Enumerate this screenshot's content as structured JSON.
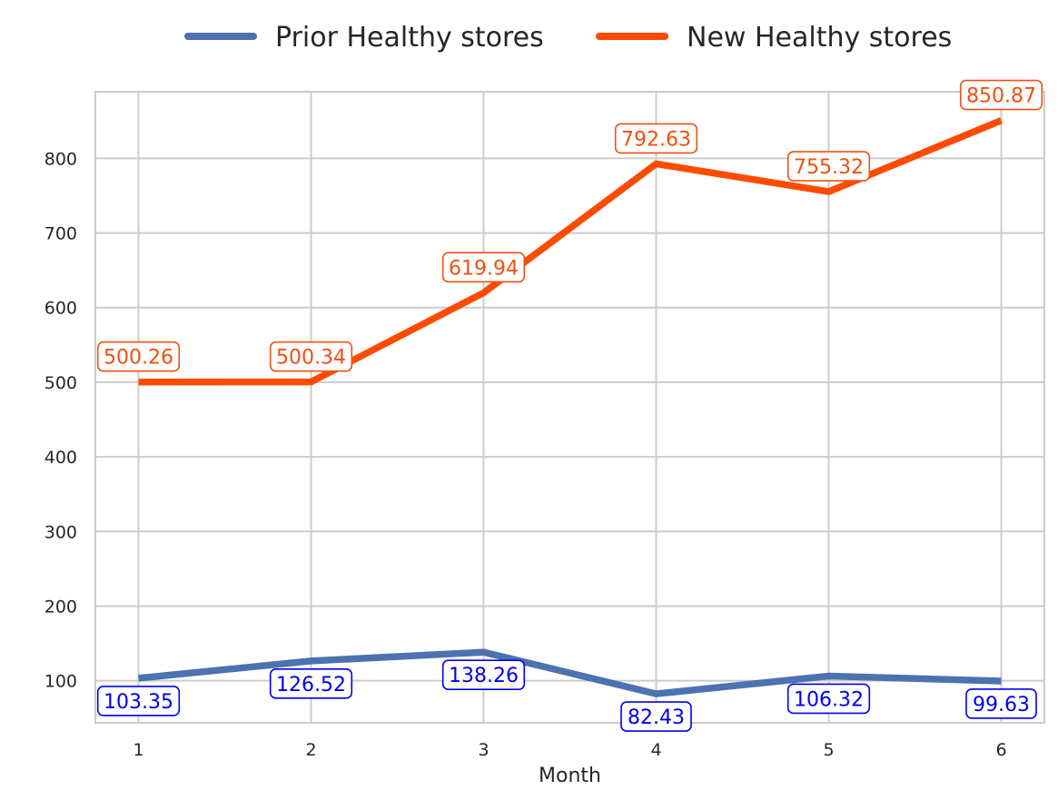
{
  "chart_data": {
    "type": "line",
    "x": [
      1,
      2,
      3,
      4,
      5,
      6
    ],
    "xlabel": "Month",
    "ylabel": "",
    "ylim": [
      43.6,
      889.3
    ],
    "yticks": [
      100,
      200,
      300,
      400,
      500,
      600,
      700,
      800
    ],
    "grid": true,
    "legend_position": "top-center",
    "series": [
      {
        "name": "Prior Healthy stores",
        "color": "#4c72b0",
        "label_color": "#0000ee",
        "values": [
          103.35,
          126.52,
          138.26,
          82.43,
          106.32,
          99.63
        ],
        "labels": [
          "103.35",
          "126.52",
          "138.26",
          "82.43",
          "106.32",
          "99.63"
        ]
      },
      {
        "name": "New Healthy stores",
        "color": "#ff4b00",
        "label_color": "#f05010",
        "values": [
          500.26,
          500.34,
          619.94,
          792.63,
          755.32,
          850.87
        ],
        "labels": [
          "500.26",
          "500.34",
          "619.94",
          "792.63",
          "755.32",
          "850.87"
        ]
      }
    ]
  }
}
